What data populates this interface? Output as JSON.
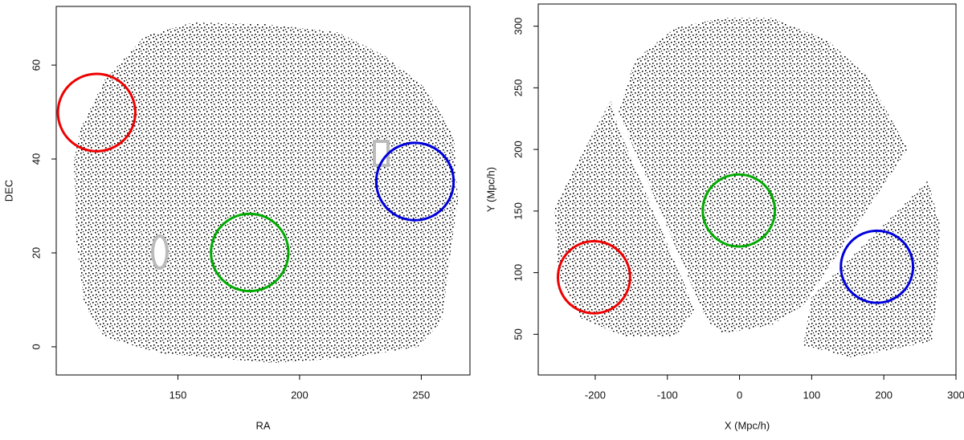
{
  "chart_data": [
    {
      "type": "scatter",
      "x_label": "RA",
      "y_label": "DEC",
      "xlim": [
        100,
        270
      ],
      "ylim": [
        -6,
        72.5
      ],
      "xticks": [
        150,
        200,
        250
      ],
      "yticks": [
        0,
        20,
        40,
        60
      ],
      "circles": [
        {
          "color": "#ee0000",
          "x": 116.6,
          "y": 49.9,
          "r": 15.9
        },
        {
          "color": "#0000dd",
          "x": 247.4,
          "y": 35.2,
          "r": 15.9
        },
        {
          "color": "#00aa00",
          "x": 179.5,
          "y": 20.1,
          "r": 15.9
        }
      ]
    },
    {
      "type": "scatter",
      "x_label": "X (Mpc/h)",
      "y_label": "Y (Mpc/h)",
      "xlim": [
        -279,
        300
      ],
      "ylim": [
        17,
        318
      ],
      "xticks": [
        -200,
        -100,
        0,
        100,
        200,
        300
      ],
      "yticks": [
        50,
        100,
        150,
        200,
        250,
        300
      ],
      "circles": [
        {
          "color": "#ee0000",
          "x": -201.7,
          "y": 96.3,
          "r": 50
        },
        {
          "color": "#00aa00",
          "x": -1,
          "y": 150.5,
          "r": 50
        },
        {
          "color": "#0000dd",
          "x": 190.5,
          "y": 104.8,
          "r": 50
        }
      ]
    }
  ]
}
